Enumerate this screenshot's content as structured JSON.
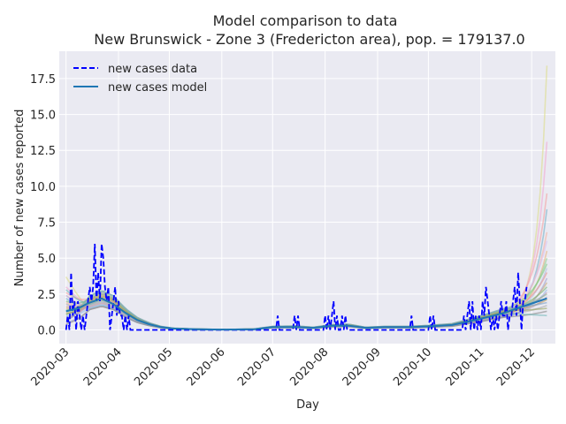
{
  "chart_data": {
    "type": "line",
    "title": "Model comparison to data",
    "subtitle": "New Brunswick - Zone 3 (Fredericton area), pop. = 179137.0",
    "xlabel": "Day",
    "ylabel": "Number of new cases reported",
    "x_range": [
      "2020-02-26",
      "2020-12-15"
    ],
    "ylim": [
      -0.95,
      19.4
    ],
    "y_ticks": [
      0.0,
      2.5,
      5.0,
      7.5,
      10.0,
      12.5,
      15.0,
      17.5
    ],
    "y_tick_labels": [
      "0.0",
      "2.5",
      "5.0",
      "7.5",
      "10.0",
      "12.5",
      "15.0",
      "17.5"
    ],
    "x_ticks": [
      "2020-03-01",
      "2020-04-01",
      "2020-05-01",
      "2020-06-01",
      "2020-07-01",
      "2020-08-01",
      "2020-09-01",
      "2020-10-01",
      "2020-11-01",
      "2020-12-01"
    ],
    "x_tick_labels": [
      "2020-03",
      "2020-04",
      "2020-05",
      "2020-06",
      "2020-07",
      "2020-08",
      "2020-09",
      "2020-10",
      "2020-11",
      "2020-12"
    ],
    "grid": true,
    "legend_position": "top-left",
    "background": "#eaeaf2",
    "series": [
      {
        "name": "new cases data",
        "style": "dashed",
        "color": "#0000ff",
        "points": [
          [
            "2020-03-01",
            0
          ],
          [
            "2020-03-02",
            1
          ],
          [
            "2020-03-03",
            0
          ],
          [
            "2020-03-04",
            4
          ],
          [
            "2020-03-05",
            1
          ],
          [
            "2020-03-06",
            2
          ],
          [
            "2020-03-07",
            0
          ],
          [
            "2020-03-08",
            2
          ],
          [
            "2020-03-09",
            1
          ],
          [
            "2020-03-10",
            0
          ],
          [
            "2020-03-11",
            1
          ],
          [
            "2020-03-12",
            0
          ],
          [
            "2020-03-13",
            1
          ],
          [
            "2020-03-14",
            2
          ],
          [
            "2020-03-15",
            3
          ],
          [
            "2020-03-16",
            2
          ],
          [
            "2020-03-17",
            3
          ],
          [
            "2020-03-18",
            6
          ],
          [
            "2020-03-19",
            2
          ],
          [
            "2020-03-20",
            4
          ],
          [
            "2020-03-21",
            2
          ],
          [
            "2020-03-22",
            6
          ],
          [
            "2020-03-23",
            5
          ],
          [
            "2020-03-24",
            3
          ],
          [
            "2020-03-25",
            2
          ],
          [
            "2020-03-26",
            3
          ],
          [
            "2020-03-27",
            0
          ],
          [
            "2020-03-28",
            1
          ],
          [
            "2020-03-29",
            2
          ],
          [
            "2020-03-30",
            3
          ],
          [
            "2020-03-31",
            1
          ],
          [
            "2020-04-01",
            2
          ],
          [
            "2020-04-02",
            1
          ],
          [
            "2020-04-03",
            1
          ],
          [
            "2020-04-04",
            0
          ],
          [
            "2020-04-05",
            1
          ],
          [
            "2020-04-06",
            0
          ],
          [
            "2020-04-07",
            1
          ],
          [
            "2020-04-08",
            0
          ],
          [
            "2020-04-09",
            0
          ],
          [
            "2020-06-01",
            0
          ],
          [
            "2020-07-03",
            0
          ],
          [
            "2020-07-04",
            1
          ],
          [
            "2020-07-05",
            0
          ],
          [
            "2020-07-13",
            0
          ],
          [
            "2020-07-14",
            1
          ],
          [
            "2020-07-15",
            0
          ],
          [
            "2020-07-16",
            1
          ],
          [
            "2020-07-17",
            0
          ],
          [
            "2020-07-31",
            0
          ],
          [
            "2020-08-01",
            1
          ],
          [
            "2020-08-02",
            0
          ],
          [
            "2020-08-03",
            1
          ],
          [
            "2020-08-04",
            0
          ],
          [
            "2020-08-05",
            1
          ],
          [
            "2020-08-06",
            2
          ],
          [
            "2020-08-07",
            0
          ],
          [
            "2020-08-08",
            1
          ],
          [
            "2020-08-09",
            0
          ],
          [
            "2020-08-10",
            0
          ],
          [
            "2020-08-11",
            1
          ],
          [
            "2020-08-12",
            0
          ],
          [
            "2020-08-13",
            1
          ],
          [
            "2020-08-14",
            0
          ],
          [
            "2020-09-20",
            0
          ],
          [
            "2020-09-21",
            1
          ],
          [
            "2020-09-22",
            0
          ],
          [
            "2020-10-01",
            0
          ],
          [
            "2020-10-02",
            1
          ],
          [
            "2020-10-03",
            0
          ],
          [
            "2020-10-04",
            1
          ],
          [
            "2020-10-05",
            0
          ],
          [
            "2020-10-21",
            0
          ],
          [
            "2020-10-22",
            1
          ],
          [
            "2020-10-23",
            0
          ],
          [
            "2020-10-24",
            1
          ],
          [
            "2020-10-25",
            2
          ],
          [
            "2020-10-26",
            0
          ],
          [
            "2020-10-27",
            2
          ],
          [
            "2020-10-28",
            0
          ],
          [
            "2020-10-29",
            1
          ],
          [
            "2020-10-30",
            0
          ],
          [
            "2020-10-31",
            1
          ],
          [
            "2020-11-01",
            0
          ],
          [
            "2020-11-02",
            2
          ],
          [
            "2020-11-03",
            1
          ],
          [
            "2020-11-04",
            3
          ],
          [
            "2020-11-05",
            2
          ],
          [
            "2020-11-06",
            1
          ],
          [
            "2020-11-07",
            0
          ],
          [
            "2020-11-08",
            1
          ],
          [
            "2020-11-09",
            0
          ],
          [
            "2020-11-10",
            1
          ],
          [
            "2020-11-11",
            0
          ],
          [
            "2020-11-12",
            1
          ],
          [
            "2020-11-13",
            2
          ],
          [
            "2020-11-14",
            1
          ],
          [
            "2020-11-15",
            1
          ],
          [
            "2020-11-16",
            2
          ],
          [
            "2020-11-17",
            0
          ],
          [
            "2020-11-18",
            1
          ],
          [
            "2020-11-19",
            1
          ],
          [
            "2020-11-20",
            2
          ],
          [
            "2020-11-21",
            3
          ],
          [
            "2020-11-22",
            1
          ],
          [
            "2020-11-23",
            4
          ],
          [
            "2020-11-24",
            2
          ],
          [
            "2020-11-25",
            0
          ],
          [
            "2020-11-26",
            2
          ],
          [
            "2020-11-27",
            2
          ],
          [
            "2020-11-28",
            3
          ]
        ]
      },
      {
        "name": "new cases model",
        "style": "solid",
        "color": "#1f77b4",
        "points": [
          [
            "2020-03-01",
            1.3
          ],
          [
            "2020-03-08",
            1.5
          ],
          [
            "2020-03-15",
            1.9
          ],
          [
            "2020-03-22",
            2.2
          ],
          [
            "2020-03-29",
            1.8
          ],
          [
            "2020-04-05",
            1.2
          ],
          [
            "2020-04-12",
            0.7
          ],
          [
            "2020-04-19",
            0.4
          ],
          [
            "2020-04-26",
            0.2
          ],
          [
            "2020-05-03",
            0.1
          ],
          [
            "2020-05-17",
            0.05
          ],
          [
            "2020-06-01",
            0.03
          ],
          [
            "2020-06-20",
            0.05
          ],
          [
            "2020-07-01",
            0.2
          ],
          [
            "2020-07-15",
            0.2
          ],
          [
            "2020-07-25",
            0.15
          ],
          [
            "2020-08-05",
            0.3
          ],
          [
            "2020-08-15",
            0.3
          ],
          [
            "2020-08-25",
            0.15
          ],
          [
            "2020-09-05",
            0.2
          ],
          [
            "2020-09-20",
            0.2
          ],
          [
            "2020-10-01",
            0.25
          ],
          [
            "2020-10-15",
            0.35
          ],
          [
            "2020-10-25",
            0.6
          ],
          [
            "2020-11-05",
            0.9
          ],
          [
            "2020-11-15",
            1.2
          ],
          [
            "2020-11-25",
            1.6
          ],
          [
            "2020-12-05",
            2.0
          ],
          [
            "2020-12-10",
            2.2
          ]
        ]
      }
    ],
    "ensemble": {
      "count": 24,
      "start": "2020-03-01",
      "end": "2020-12-10",
      "end_values": [
        18.4,
        13.1,
        9.5,
        8.4,
        6.8,
        6.2,
        5.5,
        5.0,
        4.6,
        4.3,
        4.0,
        3.6,
        3.3,
        3.0,
        2.8,
        2.6,
        2.5,
        2.3,
        2.1,
        1.9,
        1.7,
        1.5,
        1.3,
        1.0
      ],
      "start_values": [
        3.7,
        3.0,
        2.6,
        2.2,
        1.9,
        1.7,
        1.5,
        1.3,
        1.1,
        0.9,
        0.7,
        0.5,
        1.2,
        2.0,
        1.0,
        0.8,
        1.4,
        2.4,
        1.6,
        0.6,
        1.8,
        1.1,
        0.4,
        2.8
      ],
      "colors": [
        "#dcdc8a",
        "#f0a8d0",
        "#f4a0a0",
        "#74b0c8",
        "#f4b0a0",
        "#d8c0f0",
        "#e8b080",
        "#90d090",
        "#80c880",
        "#b0c0e0",
        "#e89090",
        "#a0a0d0",
        "#c8a878",
        "#7ab87a",
        "#9ac0e8",
        "#c090b0",
        "#88b898",
        "#b8a0c8",
        "#c8a060",
        "#7aa0c8",
        "#a8a8a8",
        "#9aa860",
        "#888888",
        "#70b8b8"
      ]
    }
  }
}
